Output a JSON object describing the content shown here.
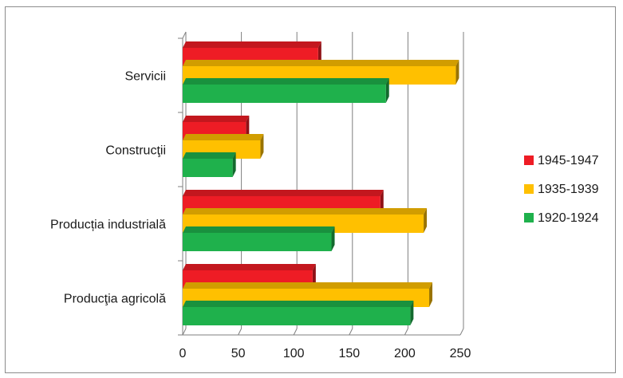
{
  "chart_data": {
    "type": "bar",
    "orientation": "horizontal",
    "style": "3d",
    "categories": [
      "Servicii",
      "Construcţii",
      "Producția industrială",
      "Producţia agricolă"
    ],
    "series": [
      {
        "name": "1945-1947",
        "color": "#ee1c25",
        "values": [
          122,
          57,
          178,
          117
        ]
      },
      {
        "name": "1935-1939",
        "color": "#ffc000",
        "values": [
          246,
          70,
          217,
          222
        ]
      },
      {
        "name": "1920-1924",
        "color": "#1fb14c",
        "values": [
          183,
          45,
          134,
          205
        ]
      }
    ],
    "xlim": [
      0,
      250
    ],
    "xticks": [
      "0",
      "50",
      "100",
      "150",
      "200",
      "250"
    ],
    "grid": true,
    "legend_position": "right"
  }
}
